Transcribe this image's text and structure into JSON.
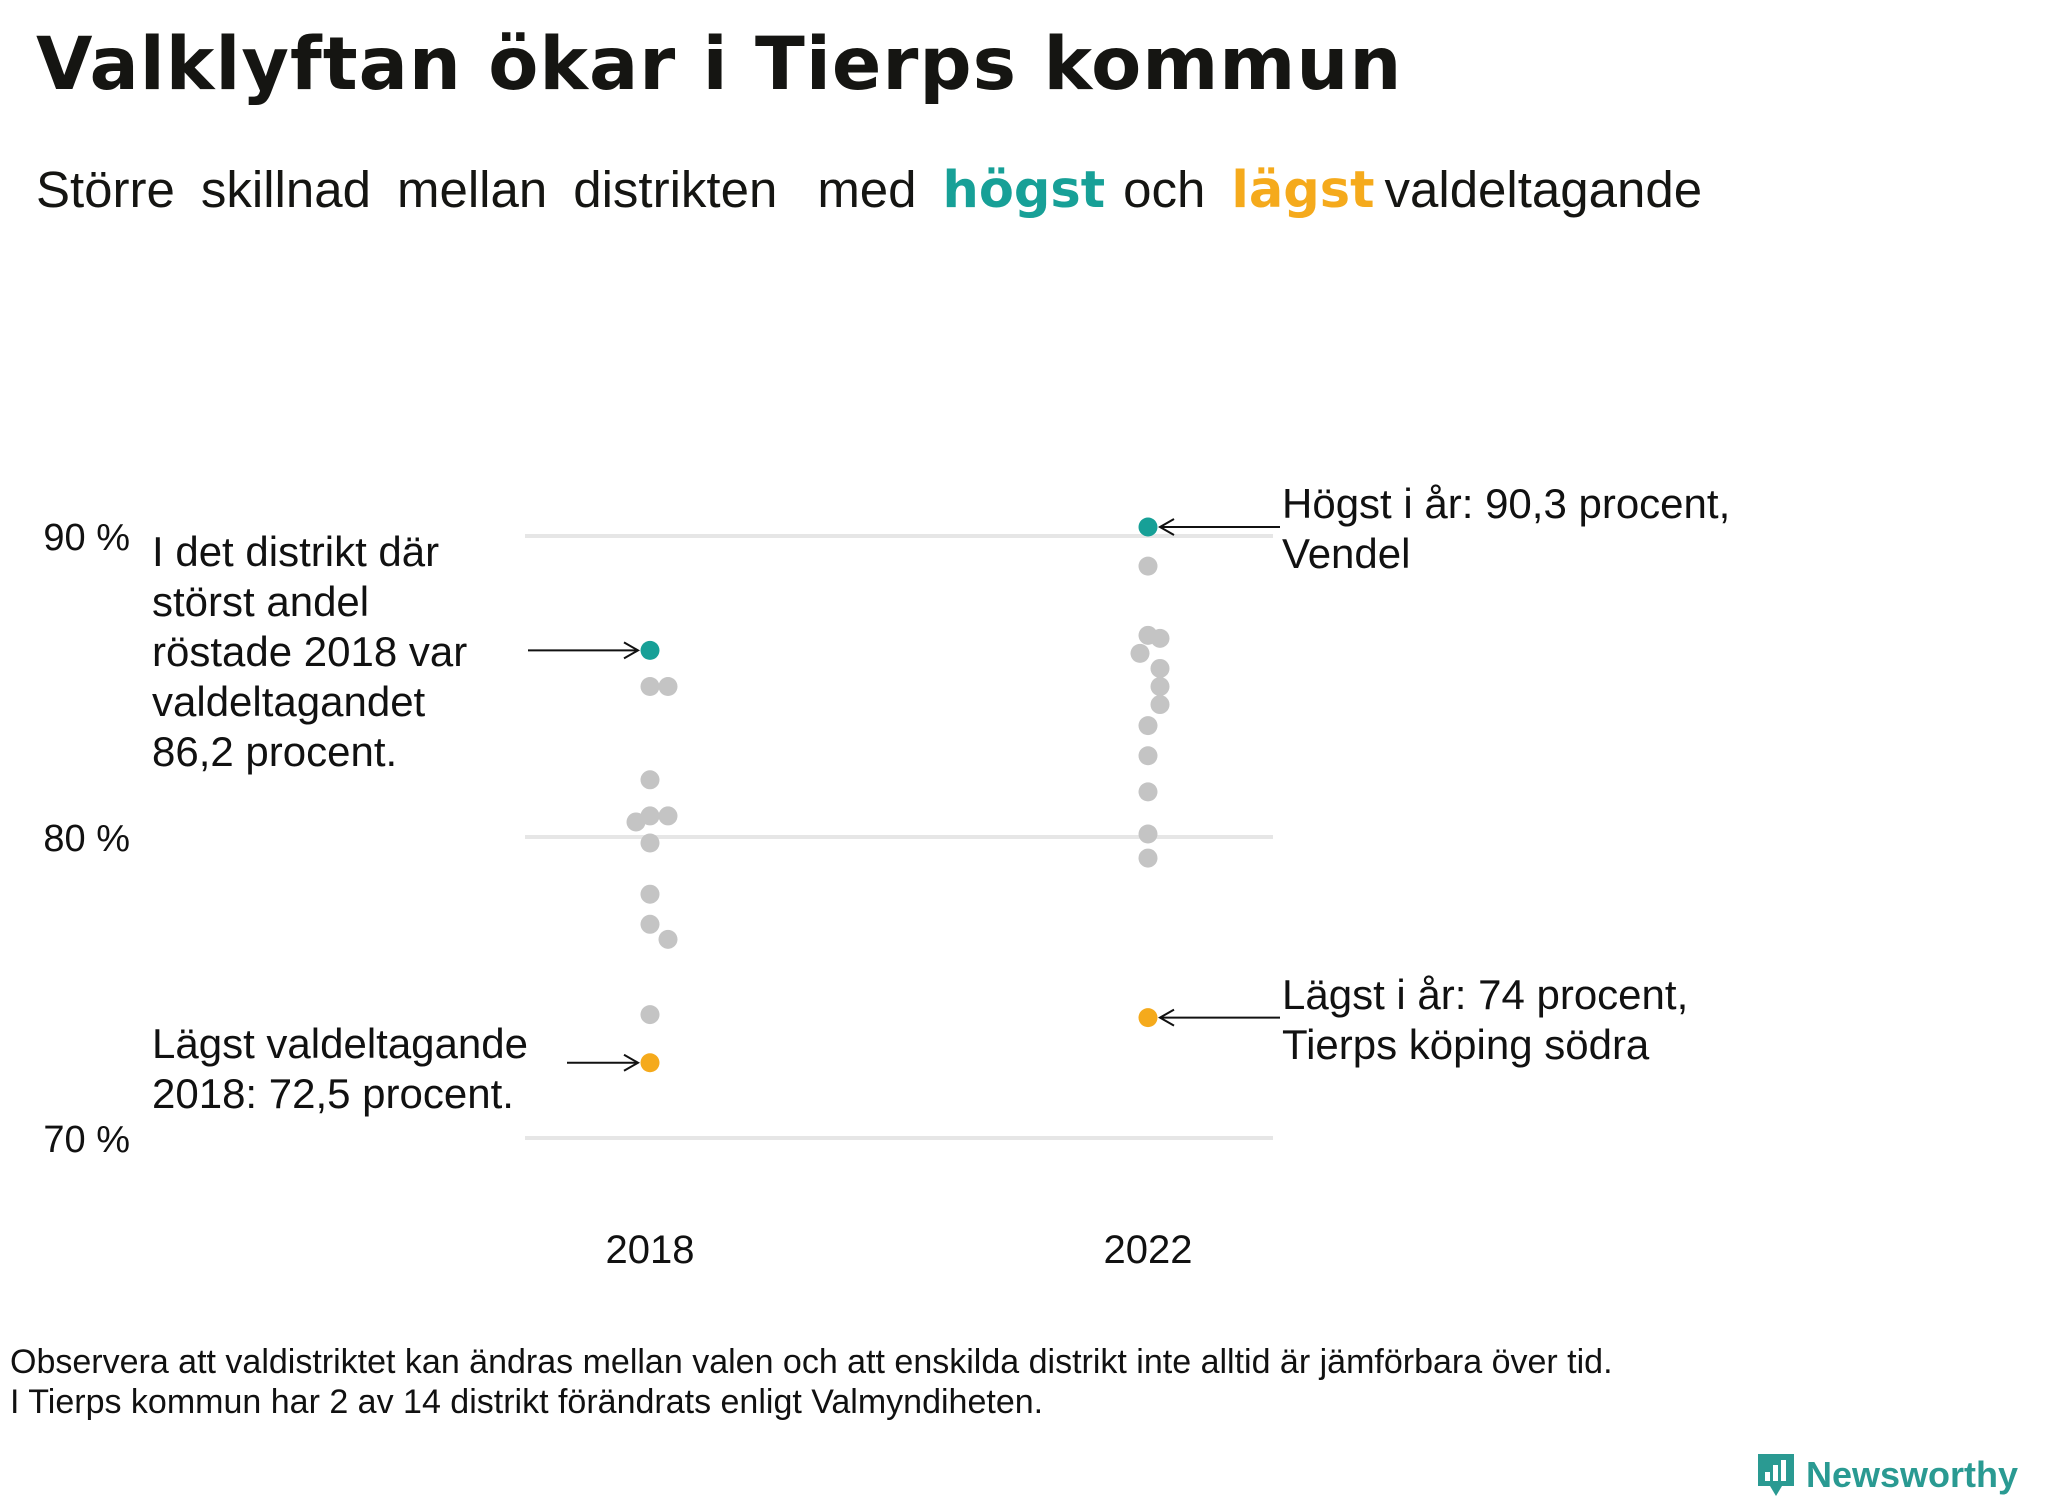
{
  "title": "Valklyftan ökar i Tierps kommun",
  "subtitle": {
    "p1": "Större",
    "p2": "skillnad",
    "p3": "mellan",
    "p4": "distrikten",
    "p5": "med",
    "highlight_high": "högst",
    "p6": "och",
    "highlight_low": "lägst",
    "p7": "valdeltagande"
  },
  "colors": {
    "high": "#17a097",
    "low": "#f5aa1c",
    "other": "#c4c4c4",
    "grid": "#e6e6e6"
  },
  "chart_data": {
    "type": "scatter",
    "categories": [
      "2018",
      "2022"
    ],
    "y_ticks": [
      "70 %",
      "80 %",
      "90 %"
    ],
    "ylim": [
      70,
      90.6
    ],
    "series": [
      {
        "category": "2018",
        "values": [
          86.2,
          85.0,
          85.0,
          81.9,
          80.7,
          80.7,
          80.5,
          79.8,
          78.1,
          77.1,
          76.6,
          74.1,
          72.5
        ],
        "highest": 86.2,
        "lowest": 72.5
      },
      {
        "category": "2022",
        "values": [
          90.3,
          89.0,
          86.7,
          86.6,
          86.1,
          85.6,
          85.0,
          84.4,
          83.7,
          82.7,
          81.5,
          80.1,
          79.3,
          74.0
        ],
        "highest": 90.3,
        "lowest": 74.0
      }
    ],
    "annotations": {
      "high_2018": [
        "I det distrikt där",
        "störst andel",
        "röstade 2018 var",
        "valdeltagandet",
        "86,2 procent."
      ],
      "low_2018": [
        "Lägst valdeltagande",
        "2018: 72,5 procent."
      ],
      "high_2022": [
        "Högst i år: 90,3 procent,",
        "Vendel"
      ],
      "low_2022": [
        "Lägst i år: 74 procent,",
        "Tierps köping södra"
      ]
    }
  },
  "footnote": {
    "line1": "Observera att valdistriktet kan ändras mellan valen och att enskilda distrikt inte alltid är jämförbara över tid.",
    "line2": "I Tierps kommun har 2 av 14 distrikt förändrats enligt Valmyndiheten."
  },
  "brand": {
    "name": "Newsworthy",
    "icon": "newsworthy-logo-icon"
  }
}
